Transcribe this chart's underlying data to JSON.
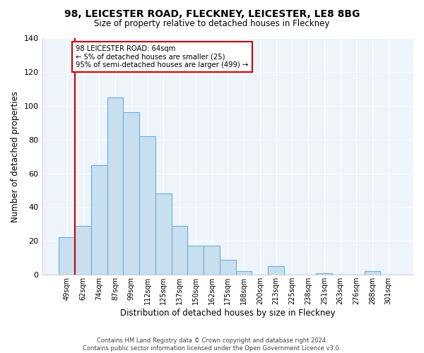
{
  "title1": "98, LEICESTER ROAD, FLECKNEY, LEICESTER, LE8 8BG",
  "title2": "Size of property relative to detached houses in Fleckney",
  "xlabel": "Distribution of detached houses by size in Fleckney",
  "ylabel": "Number of detached properties",
  "bar_labels": [
    "49sqm",
    "62sqm",
    "74sqm",
    "87sqm",
    "99sqm",
    "112sqm",
    "125sqm",
    "137sqm",
    "150sqm",
    "162sqm",
    "175sqm",
    "188sqm",
    "200sqm",
    "213sqm",
    "225sqm",
    "238sqm",
    "251sqm",
    "263sqm",
    "276sqm",
    "288sqm",
    "301sqm"
  ],
  "bar_heights": [
    22,
    29,
    65,
    105,
    96,
    82,
    48,
    29,
    17,
    17,
    9,
    2,
    0,
    5,
    0,
    0,
    1,
    0,
    0,
    2,
    0
  ],
  "bar_color": "#c8dff0",
  "bar_edge_color": "#6baed6",
  "ylim": [
    0,
    140
  ],
  "yticks": [
    0,
    20,
    40,
    60,
    80,
    100,
    120,
    140
  ],
  "property_line_color": "#cc0000",
  "annotation_title": "98 LEICESTER ROAD: 64sqm",
  "annotation_line1": "← 5% of detached houses are smaller (25)",
  "annotation_line2": "95% of semi-detached houses are larger (499) →",
  "annotation_box_color": "#ffffff",
  "annotation_box_edge_color": "#cc0000",
  "footer1": "Contains HM Land Registry data © Crown copyright and database right 2024.",
  "footer2": "Contains public sector information licensed under the Open Government Licence v3.0.",
  "bg_color": "#eef4fb"
}
